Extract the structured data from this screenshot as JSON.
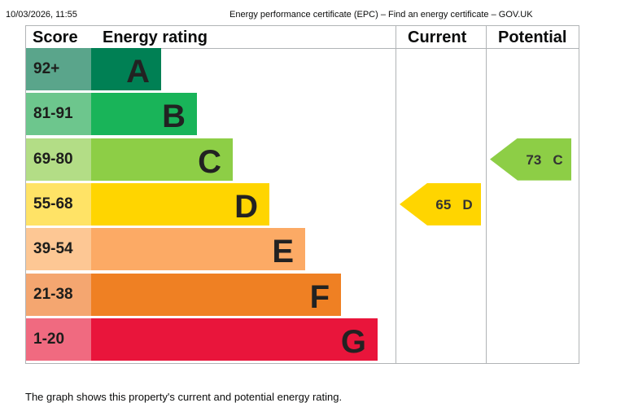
{
  "header": {
    "timestamp": "10/03/2026, 11:55",
    "page_title": "Energy performance certificate (EPC) – Find an energy certificate – GOV.UK"
  },
  "epc_graph": {
    "headers": {
      "score": "Score",
      "rating": "Energy rating",
      "current": "Current",
      "potential": "Potential"
    },
    "bands": [
      {
        "score": "92+",
        "letter": "A",
        "color": "#008054",
        "score_color": "#5aa58b"
      },
      {
        "score": "81-91",
        "letter": "B",
        "color": "#19b459",
        "score_color": "#6dc68d"
      },
      {
        "score": "69-80",
        "letter": "C",
        "color": "#8dce46",
        "score_color": "#b3dd86"
      },
      {
        "score": "55-68",
        "letter": "D",
        "color": "#ffd500",
        "score_color": "#ffe366"
      },
      {
        "score": "39-54",
        "letter": "E",
        "color": "#fcaa65",
        "score_color": "#fdc794"
      },
      {
        "score": "21-38",
        "letter": "F",
        "color": "#ef8023",
        "score_color": "#f4a670"
      },
      {
        "score": "1-20",
        "letter": "G",
        "color": "#e9153b",
        "score_color": "#f06a80"
      }
    ],
    "current": {
      "score": "65",
      "letter": "D",
      "color": "#ffd500"
    },
    "potential": {
      "score": "73",
      "letter": "C",
      "color": "#8dce46"
    }
  },
  "caption": "The graph shows this property's current and potential energy rating."
}
